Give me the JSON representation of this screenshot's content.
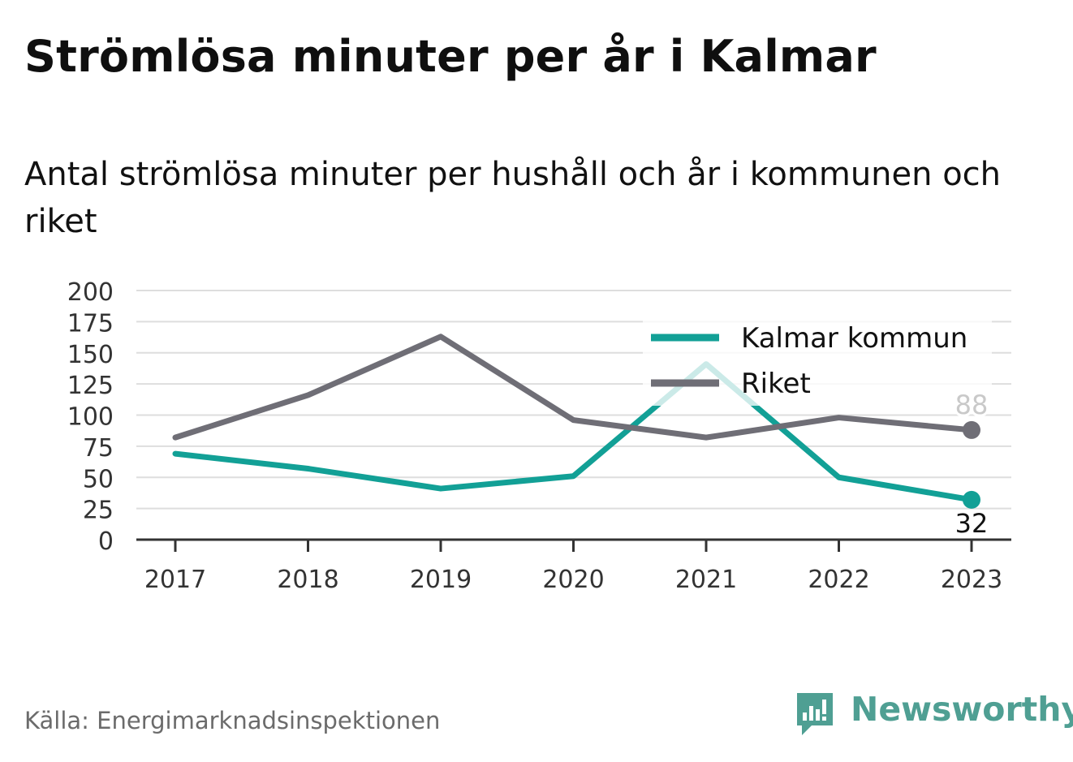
{
  "title": "Strömlösa minuter per år i Kalmar",
  "subtitle": "Antal strömlösa minuter per hushåll och år i kommunen och riket",
  "source": "Källa: Energimarknadsinspektionen",
  "brand": {
    "name": "Newsworthy",
    "icon": "newsworthy-logo-icon",
    "color": "#4f9f93"
  },
  "chart_data": {
    "type": "line",
    "x": [
      "2017",
      "2018",
      "2019",
      "2020",
      "2021",
      "2022",
      "2023"
    ],
    "ylim": [
      0,
      200
    ],
    "yticks": [
      0,
      25,
      50,
      75,
      100,
      125,
      150,
      175,
      200
    ],
    "grid": true,
    "legend_position": "top-right",
    "series": [
      {
        "name": "Kalmar kommun",
        "color": "#12a096",
        "values": [
          69,
          57,
          41,
          51,
          141,
          50,
          32
        ],
        "end_label": "32"
      },
      {
        "name": "Riket",
        "color": "#6f6e76",
        "values": [
          82,
          116,
          163,
          96,
          82,
          98,
          88
        ],
        "end_label": "88"
      }
    ]
  }
}
